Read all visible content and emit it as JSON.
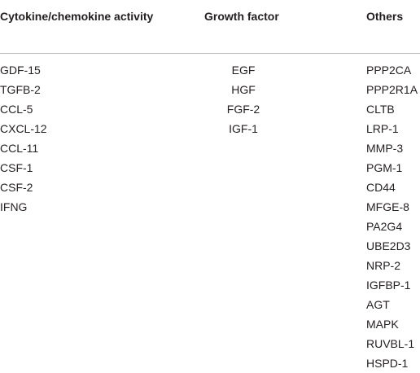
{
  "table": {
    "headers": {
      "col1": "Cytokine/chemokine activity",
      "col2": "Growth factor",
      "col3": "Others"
    },
    "columns": {
      "cytokine_chemokine_activity": [
        "GDF-15",
        "TGFB-2",
        "CCL-5",
        "CXCL-12",
        "CCL-11",
        "CSF-1",
        "CSF-2",
        "IFNG"
      ],
      "growth_factor": [
        "EGF",
        "HGF",
        "FGF-2",
        "IGF-1"
      ],
      "others": [
        "PPP2CA",
        "PPP2R1A",
        "CLTB",
        "LRP-1",
        "MMP-3",
        "PGM-1",
        "CD44",
        "MFGE-8",
        "PA2G4",
        "UBE2D3",
        "NRP-2",
        "IGFBP-1",
        "AGT",
        "MAPK",
        "RUVBL-1",
        "HSPD-1"
      ]
    }
  }
}
